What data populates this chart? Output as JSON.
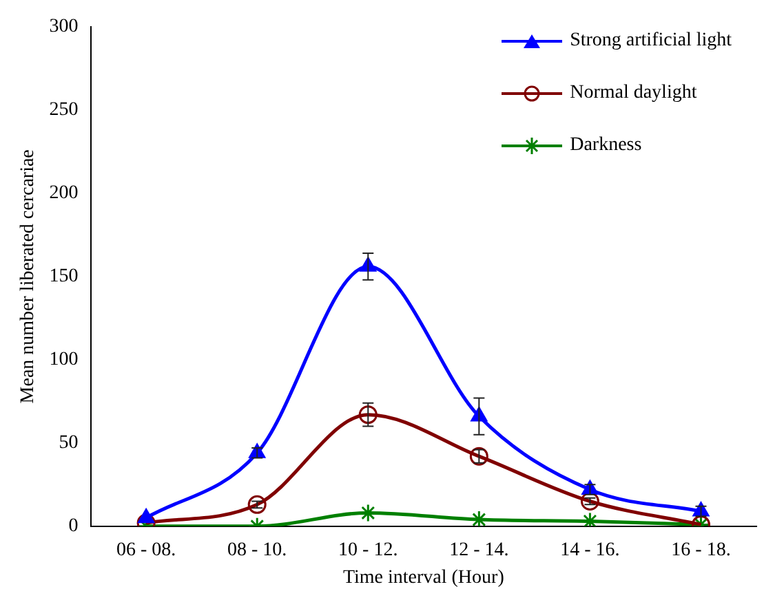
{
  "chart_data": {
    "type": "line",
    "xlabel": "Time interval (Hour)",
    "ylabel": "Mean number liberated cercariae",
    "categories": [
      "06 - 08.",
      "08 - 10.",
      "10 - 12.",
      "12 - 14.",
      "14 - 16.",
      "16 - 18."
    ],
    "ylim": [
      0,
      300
    ],
    "yticks": [
      0,
      50,
      100,
      150,
      200,
      250,
      300
    ],
    "grid": false,
    "legend": "top right",
    "series": [
      {
        "name": "Strong artificial light",
        "color": "#0000ff",
        "marker": "triangle",
        "values": [
          5,
          44,
          156,
          66,
          22,
          9
        ],
        "errors": [
          null,
          3,
          8,
          11,
          3,
          3
        ]
      },
      {
        "name": "Normal daylight",
        "color": "#800000",
        "marker": "circle",
        "values": [
          2,
          13,
          67,
          42,
          15,
          1
        ],
        "errors": [
          null,
          2,
          7,
          4,
          2,
          null
        ]
      },
      {
        "name": "Darkness",
        "color": "#008000",
        "marker": "cross",
        "values": [
          0,
          0,
          8,
          4,
          3,
          1
        ]
      }
    ]
  }
}
